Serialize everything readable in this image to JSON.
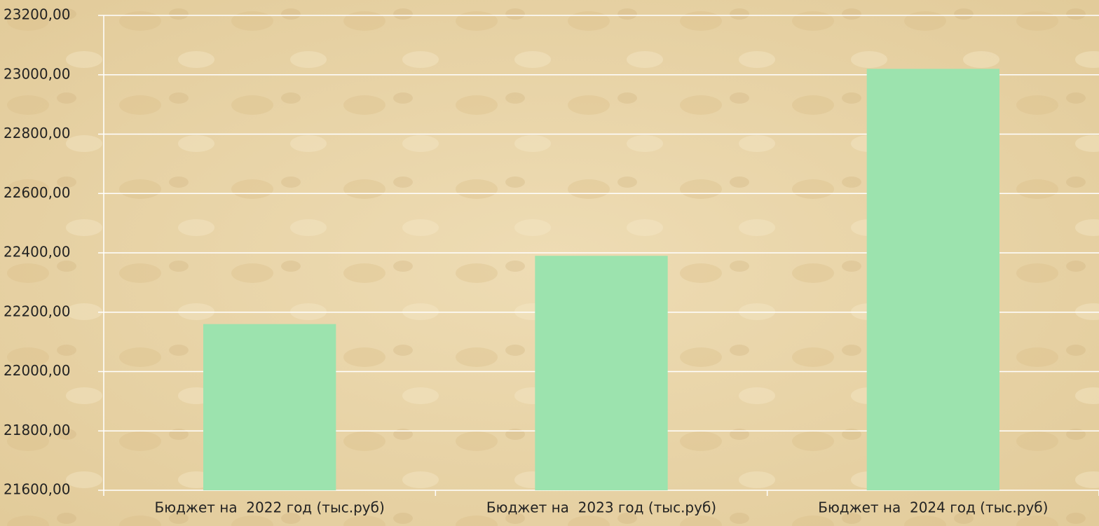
{
  "chart_data": {
    "type": "bar",
    "categories": [
      "Бюджет на  2022 год (тыс.руб)",
      "Бюджет на  2023 год (тыс.руб)",
      "Бюджет на  2024 год (тыс.руб)"
    ],
    "values": [
      22160,
      22390,
      23020
    ],
    "color": "#9ce3ae",
    "ylim": [
      21600,
      23200
    ],
    "yticks": [
      {
        "value": 21600,
        "label": "21600,00"
      },
      {
        "value": 21800,
        "label": "21800,00"
      },
      {
        "value": 22000,
        "label": "22000,00"
      },
      {
        "value": 22200,
        "label": "22200,00"
      },
      {
        "value": 22400,
        "label": "22400,00"
      },
      {
        "value": 22600,
        "label": "22600,00"
      },
      {
        "value": 22800,
        "label": "22800,00"
      },
      {
        "value": 23000,
        "label": "23000,00"
      },
      {
        "value": 23200,
        "label": "23200,00"
      }
    ],
    "grid": true
  }
}
